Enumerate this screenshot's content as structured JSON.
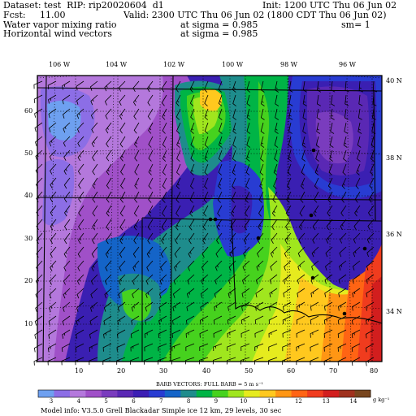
{
  "header": {
    "dataset": "Dataset: test  RIP: rip20020604  d1",
    "init": "Init: 1200 UTC Thu 06 Jun 02",
    "fcst": "Fcst:     11.00",
    "valid": "Valid: 2300 UTC Thu 06 Jun 02 (1800 CDT Thu 06 Jun 02)",
    "field1": "Water vapor mixing ratio",
    "sigma1": "at sigma = 0.985",
    "sm": "sm= 1",
    "field2": "Horizontal wind vectors",
    "sigma2": "at sigma = 0.985"
  },
  "map": {
    "top_longitudes": [
      "106 W",
      "104 W",
      "102 W",
      "100 W",
      "98 W",
      "96 W"
    ],
    "right_latitudes": [
      "40 N",
      "38 N",
      "36 N",
      "34 N"
    ],
    "left_grid_labels": [
      "60",
      "50",
      "40",
      "30",
      "20",
      "10"
    ],
    "bottom_grid_labels": [
      "10",
      "20",
      "30",
      "40",
      "50",
      "60",
      "70",
      "80"
    ]
  },
  "barbs_note": "BARB VECTORS:  FULL BARB = 5 m s⁻¹",
  "colorbar": {
    "labels": [
      "3",
      "4",
      "5",
      "6",
      "7",
      "8",
      "9",
      "10",
      "11",
      "12",
      "13",
      "14"
    ],
    "unit": "g kg⁻¹",
    "colors": [
      "#6ea0f0",
      "#8c6ee6",
      "#b478dc",
      "#a050c8",
      "#7a3cbe",
      "#5a28b4",
      "#3c1eb4",
      "#283cd2",
      "#1464c8",
      "#1e8c8c",
      "#00b446",
      "#46d21e",
      "#a0e61e",
      "#e6eb1e",
      "#ffc81e",
      "#ff9614",
      "#ff6414",
      "#f03c1e",
      "#d21e1e",
      "#a0321e",
      "#78461e"
    ]
  },
  "footer": "Model info: V3.5.0   Grell    Blackadar   Simple ice    12 km,   29 levels,    30 sec"
}
